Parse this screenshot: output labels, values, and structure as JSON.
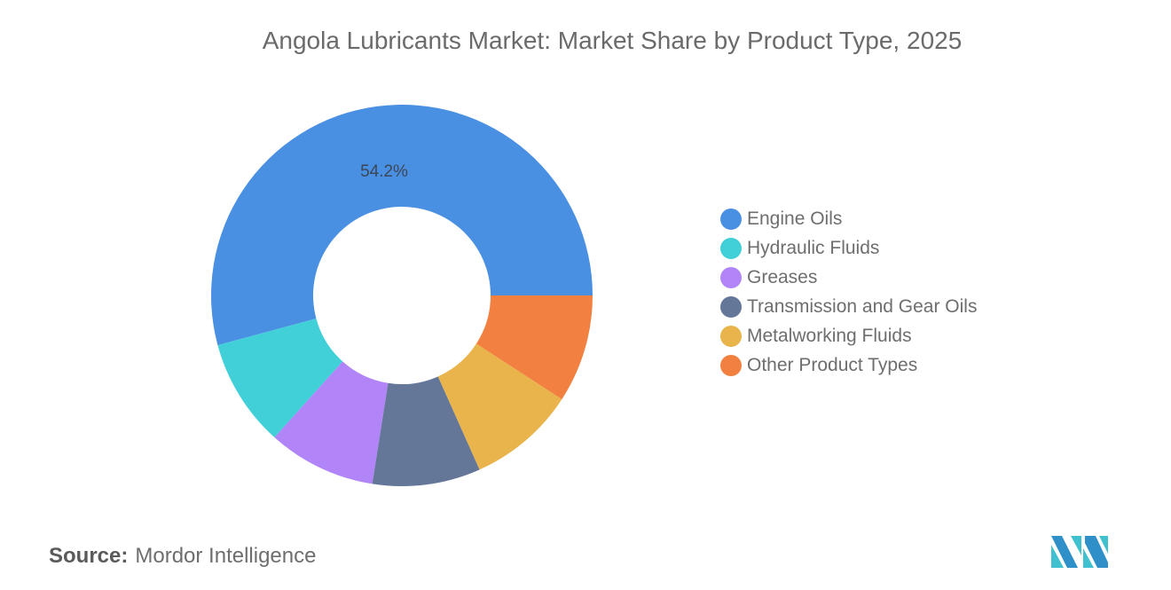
{
  "title": "Angola Lubricants Market: Market Share by Product Type, 2025",
  "source": {
    "label": "Source:",
    "value": "Mordor Intelligence"
  },
  "chart_data": {
    "type": "pie",
    "subtype": "donut",
    "title": "Angola Lubricants Market: Market Share by Product Type, 2025",
    "categories": [
      "Engine Oils",
      "Hydraulic Fluids",
      "Greases",
      "Transmission and Gear Oils",
      "Metalworking Fluids",
      "Other Product Types"
    ],
    "values": [
      54.2,
      9.16,
      9.16,
      9.16,
      9.16,
      9.16
    ],
    "colors": [
      "#4a90e2",
      "#41cfd8",
      "#b185f8",
      "#647799",
      "#e9b44c",
      "#f28141"
    ],
    "data_labels": [
      {
        "category": "Engine Oils",
        "text": "54.2%"
      }
    ],
    "legend_position": "right"
  },
  "legend": [
    {
      "label": "Engine Oils",
      "color": "#4a90e2"
    },
    {
      "label": "Hydraulic Fluids",
      "color": "#41cfd8"
    },
    {
      "label": "Greases",
      "color": "#b185f8"
    },
    {
      "label": "Transmission and Gear Oils",
      "color": "#647799"
    },
    {
      "label": "Metalworking Fluids",
      "color": "#e9b44c"
    },
    {
      "label": "Other Product Types",
      "color": "#f28141"
    }
  ],
  "logo": {
    "name": "mordor-intelligence-logo"
  }
}
